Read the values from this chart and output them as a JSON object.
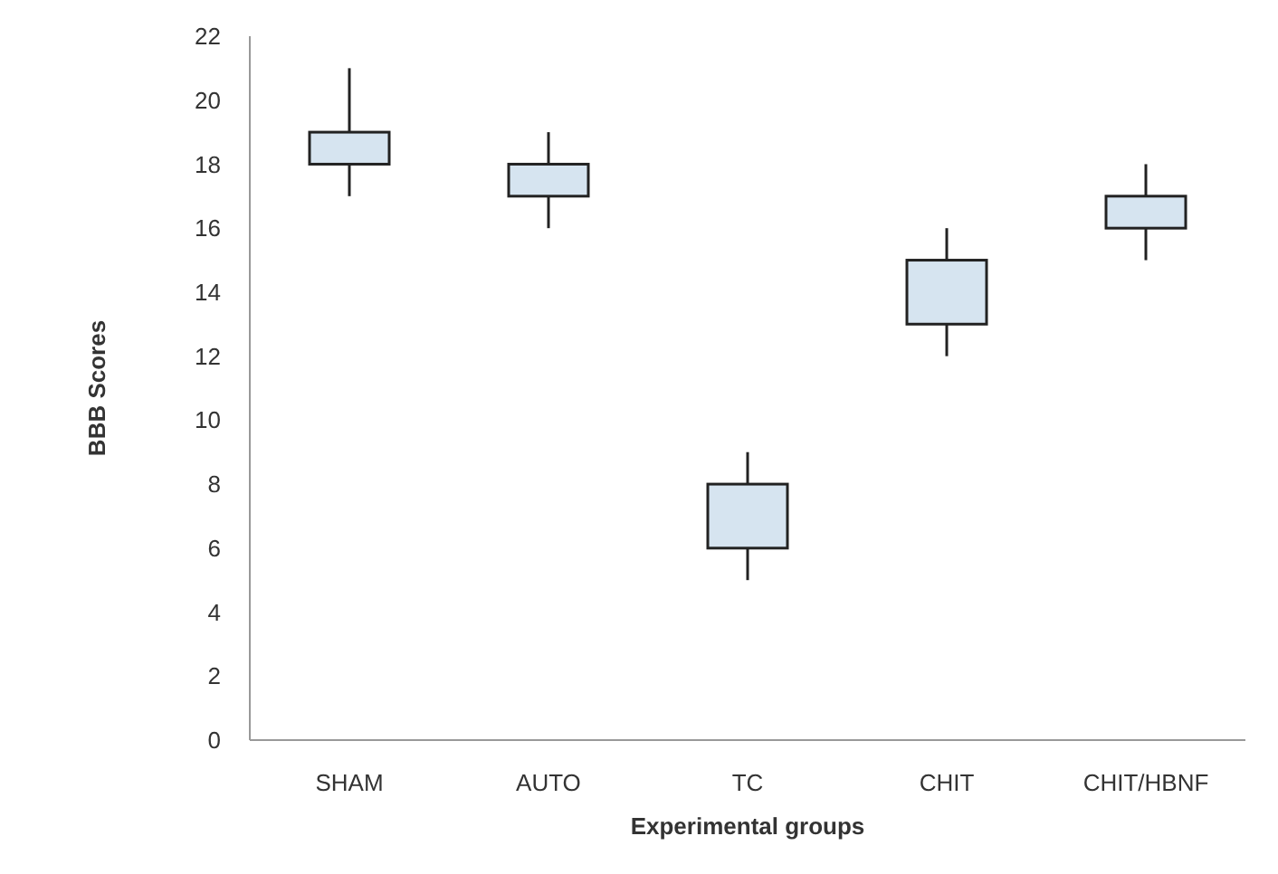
{
  "chart_data": {
    "type": "candlestick",
    "xlabel": "Experimental groups",
    "ylabel": "BBB Scores",
    "categories": [
      "SHAM",
      "AUTO",
      "TC",
      "CHIT",
      "CHIT/HBNF"
    ],
    "ohlc": [
      [
        18,
        21,
        17,
        19
      ],
      [
        17,
        19,
        16,
        18
      ],
      [
        6,
        9,
        5,
        8
      ],
      [
        13,
        16,
        12,
        15
      ],
      [
        16,
        18,
        15,
        17
      ]
    ],
    "color": "#d6e4f0",
    "ylim": [
      0,
      22
    ],
    "yticks": [
      0,
      2,
      4,
      6,
      8,
      10,
      12,
      14,
      16,
      18,
      20,
      22
    ],
    "grid": false
  }
}
